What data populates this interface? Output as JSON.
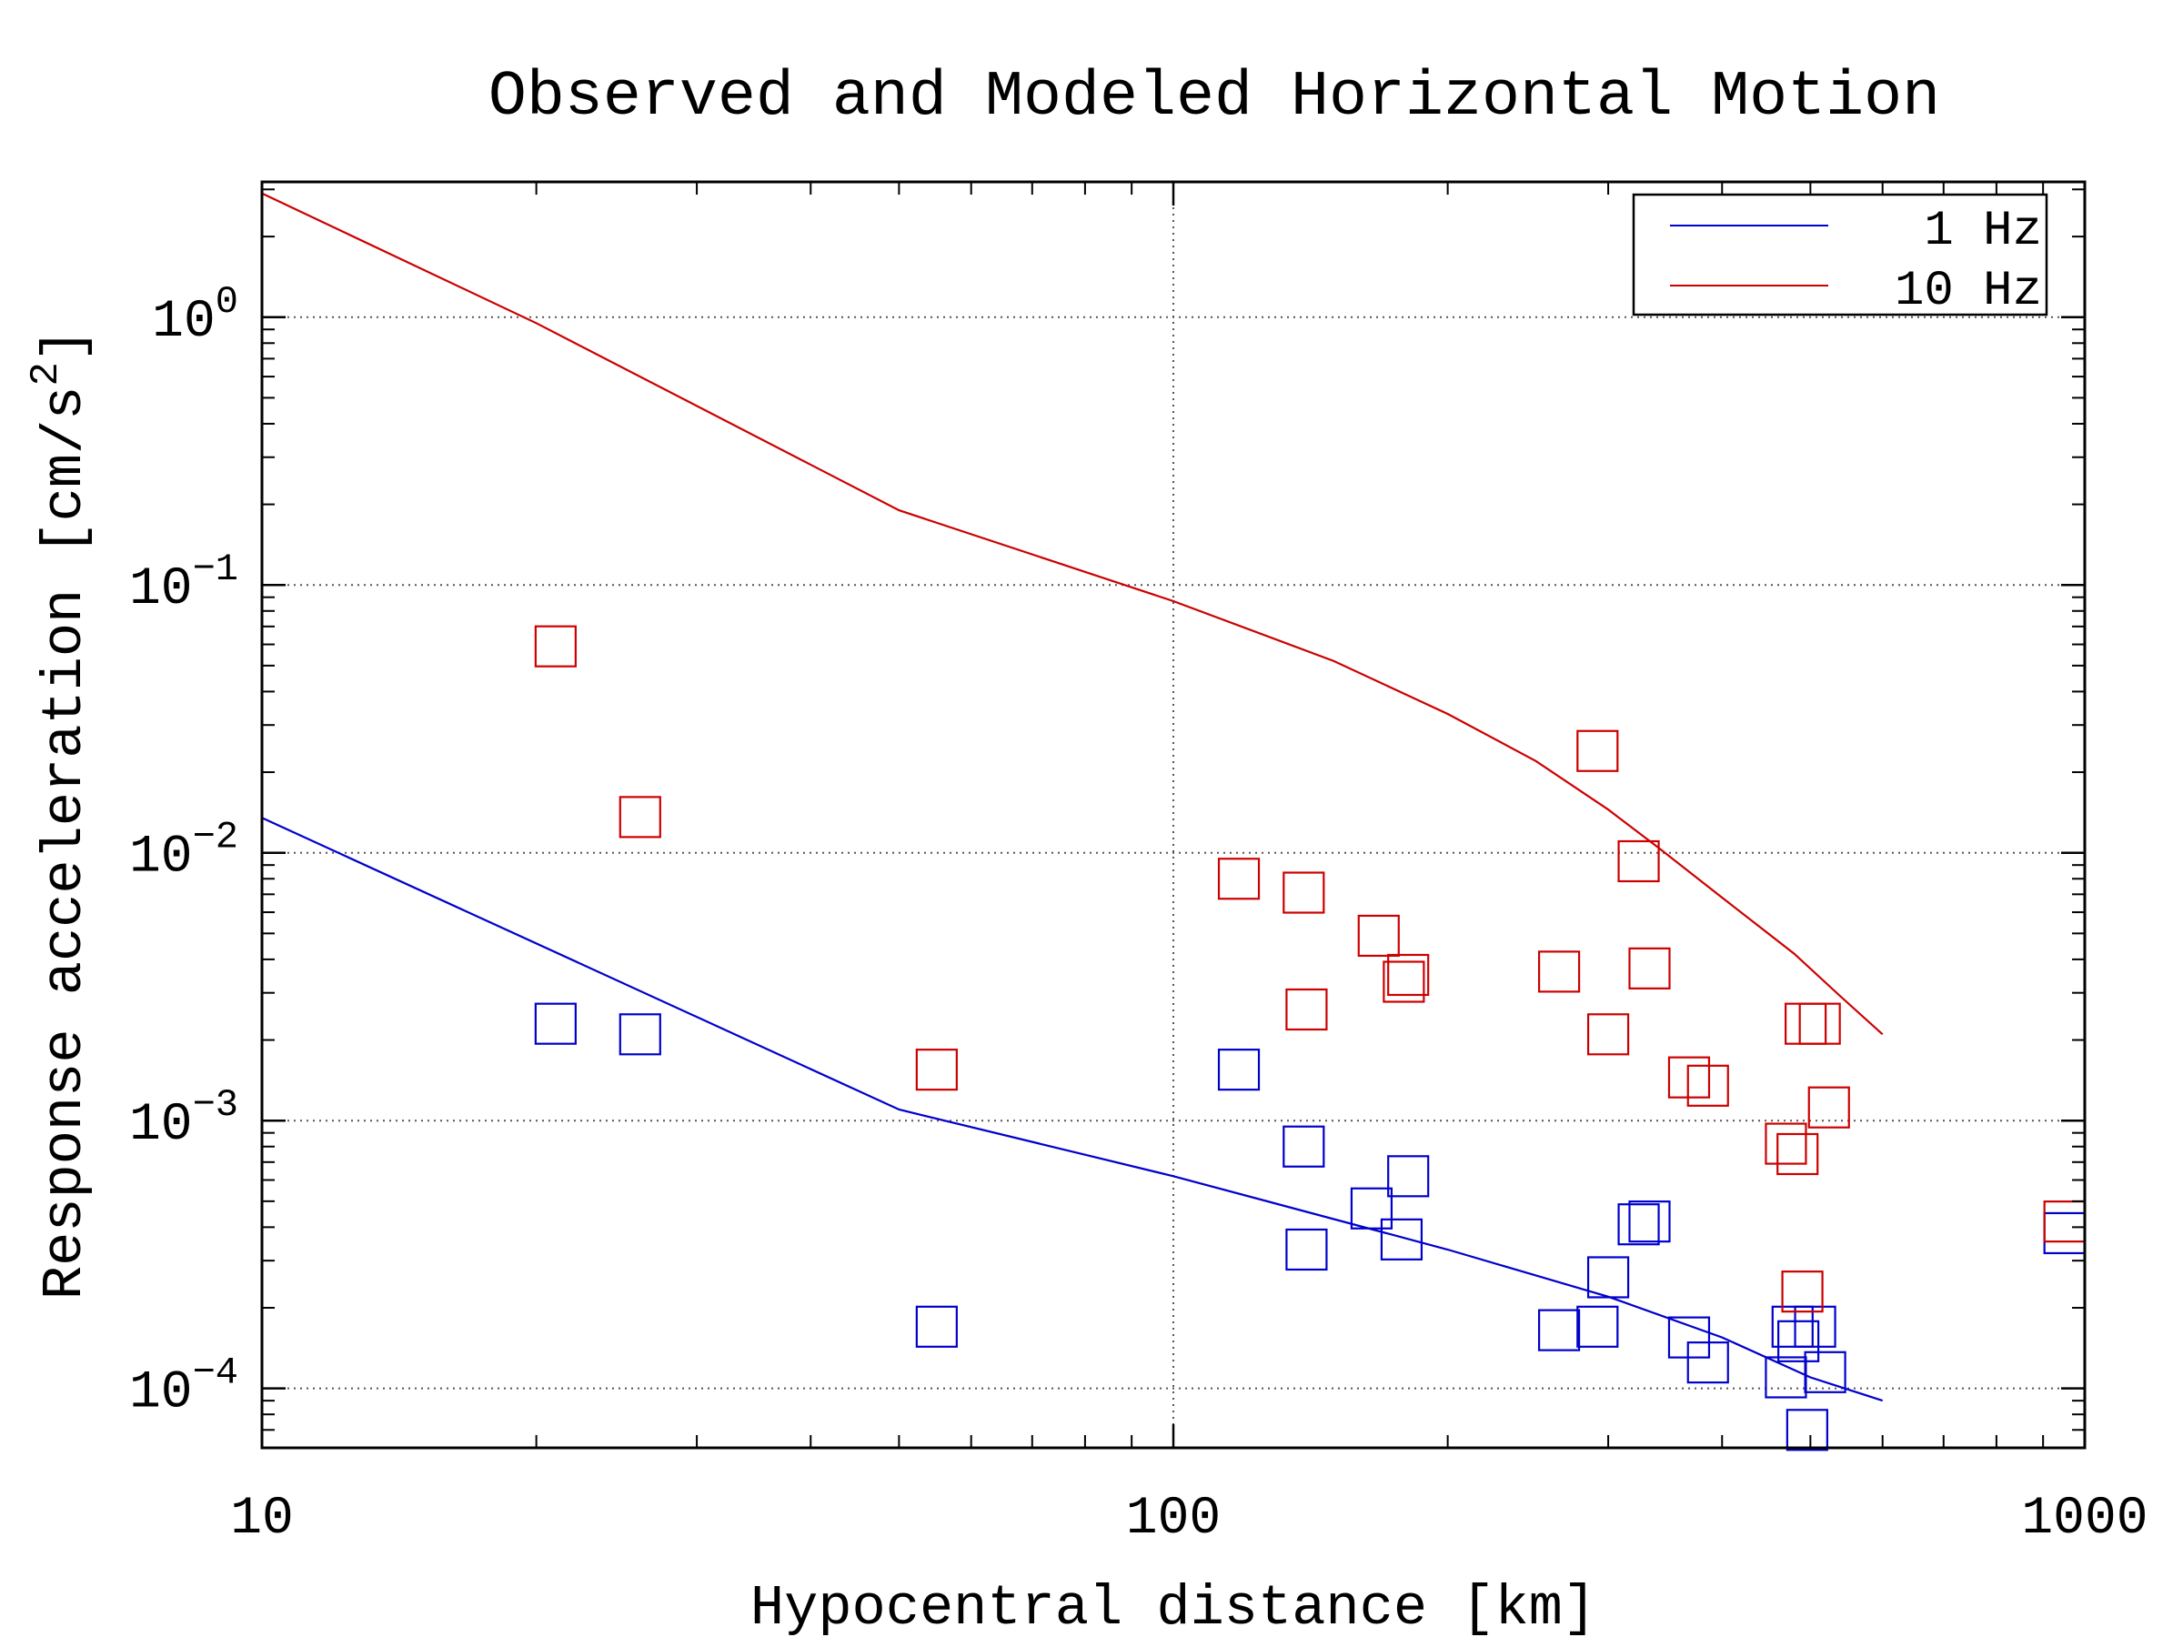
{
  "chart_data": {
    "type": "scatter",
    "title": "Observed and Modeled Horizontal Motion",
    "xlabel": "Hypocentral distance [km]",
    "ylabel": "Response acceleration [cm/s",
    "ylabel_superscript": "2",
    "ylabel_close": "]",
    "x_scale": "log",
    "y_scale": "log",
    "xlim": [
      10,
      1000
    ],
    "ylim": [
      6e-05,
      3.2
    ],
    "x_ticks": [
      {
        "value": 10,
        "label": "10"
      },
      {
        "value": 100,
        "label": "100"
      },
      {
        "value": 1000,
        "label": "1000"
      }
    ],
    "y_ticks": [
      {
        "value": 1,
        "base": "10",
        "exp": "0"
      },
      {
        "value": 0.1,
        "base": "10",
        "exp": "−1"
      },
      {
        "value": 0.01,
        "base": "10",
        "exp": "−2"
      },
      {
        "value": 0.001,
        "base": "10",
        "exp": "−3"
      },
      {
        "value": 0.0001,
        "base": "10",
        "exp": "−4"
      }
    ],
    "grid": true,
    "legend_position": "top-right",
    "series": [
      {
        "name": "1 Hz",
        "color": "#0000cc",
        "line": [
          [
            10,
            0.0135
          ],
          [
            50,
            0.0011
          ],
          [
            100,
            0.00062
          ],
          [
            200,
            0.00033
          ],
          [
            300,
            0.00022
          ],
          [
            400,
            0.000155
          ],
          [
            500,
            0.00011
          ],
          [
            600,
            9e-05
          ]
        ],
        "observed": [
          [
            21,
            0.0023
          ],
          [
            26,
            0.0021
          ],
          [
            55,
            0.00017
          ],
          [
            118,
            0.00155
          ],
          [
            139,
            0.0008
          ],
          [
            140,
            0.00033
          ],
          [
            165,
            0.00047
          ],
          [
            178,
            0.00036
          ],
          [
            181,
            0.00062
          ],
          [
            265,
            0.000165
          ],
          [
            292,
            0.00017
          ],
          [
            300,
            0.00026
          ],
          [
            324,
            0.00041
          ],
          [
            333,
            0.00042
          ],
          [
            368,
            0.000155
          ],
          [
            386,
            0.000125
          ],
          [
            470,
            0.00011
          ],
          [
            478,
            0.00017
          ],
          [
            485,
            0.00015
          ],
          [
            496,
            7e-05
          ],
          [
            506,
            0.00017
          ],
          [
            519,
            0.000115
          ],
          [
            950,
            0.00038
          ]
        ]
      },
      {
        "name": "10 Hz",
        "color": "#cc0000",
        "line": [
          [
            10,
            2.9
          ],
          [
            20,
            0.95
          ],
          [
            50,
            0.19
          ],
          [
            100,
            0.087
          ],
          [
            150,
            0.052
          ],
          [
            200,
            0.033
          ],
          [
            250,
            0.022
          ],
          [
            300,
            0.0145
          ],
          [
            340,
            0.0105
          ],
          [
            400,
            0.0068
          ],
          [
            480,
            0.0042
          ],
          [
            540,
            0.0029
          ],
          [
            600,
            0.0021
          ]
        ],
        "observed": [
          [
            21,
            0.059
          ],
          [
            26,
            0.0136
          ],
          [
            55,
            0.00155
          ],
          [
            118,
            0.008
          ],
          [
            139,
            0.0071
          ],
          [
            140,
            0.0026
          ],
          [
            168,
            0.0049
          ],
          [
            179,
            0.0033
          ],
          [
            181,
            0.0035
          ],
          [
            265,
            0.0036
          ],
          [
            292,
            0.024
          ],
          [
            300,
            0.0021
          ],
          [
            324,
            0.0093
          ],
          [
            333,
            0.0037
          ],
          [
            368,
            0.00145
          ],
          [
            386,
            0.00135
          ],
          [
            470,
            0.00082
          ],
          [
            484,
            0.00075
          ],
          [
            490,
            0.00023
          ],
          [
            494,
            0.0023
          ],
          [
            512,
            0.0023
          ],
          [
            524,
            0.00112
          ],
          [
            950,
            0.00042
          ]
        ]
      }
    ]
  }
}
